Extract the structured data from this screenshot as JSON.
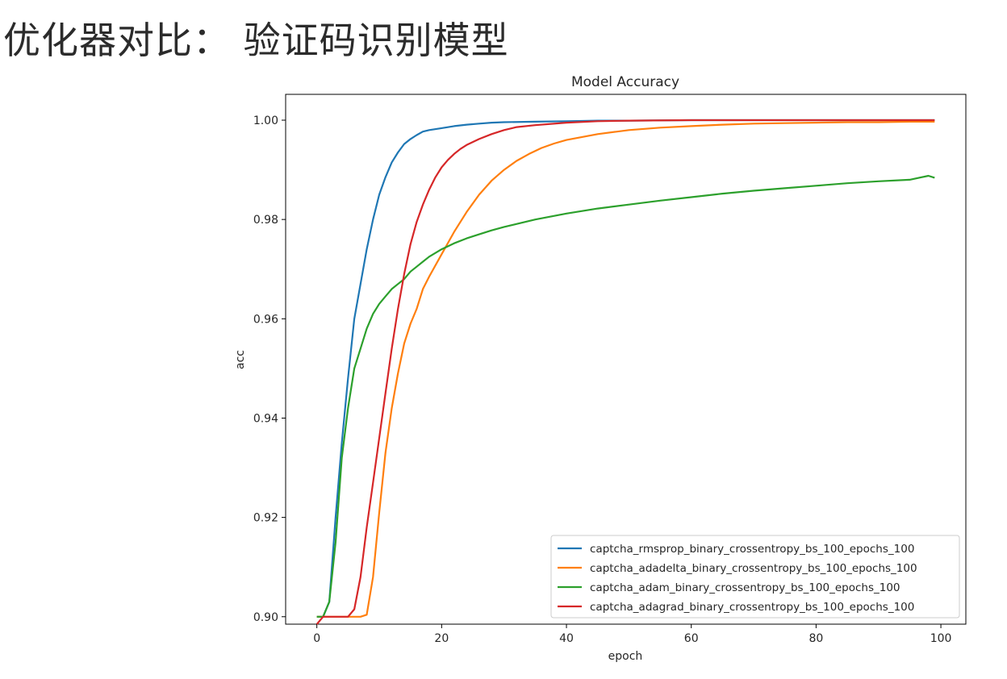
{
  "slide": {
    "title": "优化器对比： 验证码识别模型"
  },
  "chart_data": {
    "type": "line",
    "title": "Model Accuracy",
    "xlabel": "epoch",
    "ylabel": "acc",
    "xlim": [
      -5,
      104
    ],
    "ylim": [
      0.8985,
      1.0052
    ],
    "xticks": [
      0,
      20,
      40,
      60,
      80,
      100
    ],
    "yticks": [
      0.9,
      0.92,
      0.94,
      0.96,
      0.98,
      1.0
    ],
    "ytick_labels": [
      "0.90",
      "0.92",
      "0.94",
      "0.96",
      "0.98",
      "1.00"
    ],
    "legend_position": "lower-right",
    "series": [
      {
        "name": "captcha_rmsprop_binary_crossentropy_bs_100_epochs_100",
        "color": "#1f77b4",
        "x": [
          0,
          1,
          2,
          3,
          4,
          5,
          6,
          7,
          8,
          9,
          10,
          11,
          12,
          13,
          14,
          15,
          16,
          17,
          18,
          20,
          22,
          24,
          26,
          28,
          30,
          35,
          40,
          45,
          50,
          60,
          70,
          80,
          90,
          99
        ],
        "y": [
          0.9,
          0.9,
          0.903,
          0.92,
          0.935,
          0.948,
          0.96,
          0.967,
          0.974,
          0.98,
          0.985,
          0.9885,
          0.9915,
          0.9935,
          0.9952,
          0.9962,
          0.997,
          0.9977,
          0.998,
          0.9984,
          0.9988,
          0.9991,
          0.9993,
          0.9995,
          0.9996,
          0.9997,
          0.9998,
          0.9999,
          0.9999,
          1.0,
          1.0,
          1.0,
          1.0,
          1.0
        ]
      },
      {
        "name": "captcha_adadelta_binary_crossentropy_bs_100_epochs_100",
        "color": "#ff7f0e",
        "x": [
          0,
          2,
          4,
          6,
          7,
          8,
          9,
          10,
          11,
          12,
          13,
          14,
          15,
          16,
          17,
          18,
          20,
          22,
          24,
          26,
          28,
          30,
          32,
          34,
          36,
          38,
          40,
          45,
          50,
          55,
          60,
          65,
          70,
          75,
          80,
          85,
          90,
          95,
          99
        ],
        "y": [
          0.9,
          0.9,
          0.9,
          0.9,
          0.9,
          0.9004,
          0.908,
          0.921,
          0.933,
          0.942,
          0.949,
          0.955,
          0.959,
          0.962,
          0.966,
          0.9685,
          0.973,
          0.9775,
          0.9815,
          0.985,
          0.9878,
          0.99,
          0.9918,
          0.9932,
          0.9944,
          0.9953,
          0.996,
          0.9972,
          0.998,
          0.9985,
          0.9988,
          0.9991,
          0.9993,
          0.9994,
          0.9995,
          0.9996,
          0.9996,
          0.9997,
          0.9997
        ]
      },
      {
        "name": "captcha_adam_binary_crossentropy_bs_100_epochs_100",
        "color": "#2ca02c",
        "x": [
          0,
          1,
          2,
          3,
          4,
          5,
          6,
          7,
          8,
          9,
          10,
          11,
          12,
          13,
          14,
          15,
          16,
          17,
          18,
          20,
          22,
          24,
          26,
          28,
          30,
          35,
          40,
          45,
          50,
          55,
          60,
          65,
          70,
          75,
          80,
          85,
          90,
          95,
          98,
          99
        ],
        "y": [
          0.9,
          0.9,
          0.903,
          0.915,
          0.932,
          0.942,
          0.95,
          0.954,
          0.958,
          0.961,
          0.963,
          0.9645,
          0.966,
          0.967,
          0.968,
          0.9695,
          0.9705,
          0.9715,
          0.9725,
          0.974,
          0.9752,
          0.9762,
          0.977,
          0.9778,
          0.9785,
          0.98,
          0.9812,
          0.9822,
          0.983,
          0.9838,
          0.9845,
          0.9852,
          0.9858,
          0.9863,
          0.9868,
          0.9873,
          0.9877,
          0.988,
          0.9888,
          0.9884
        ]
      },
      {
        "name": "captcha_adagrad_binary_crossentropy_bs_100_epochs_100",
        "color": "#d62728",
        "x": [
          0,
          1,
          2,
          3,
          4,
          5,
          6,
          7,
          8,
          9,
          10,
          11,
          12,
          13,
          14,
          15,
          16,
          17,
          18,
          19,
          20,
          21,
          22,
          23,
          24,
          26,
          28,
          30,
          32,
          35,
          40,
          45,
          50,
          60,
          70,
          80,
          90,
          99
        ],
        "y": [
          0.8985,
          0.9,
          0.9,
          0.9,
          0.9,
          0.9,
          0.9015,
          0.908,
          0.918,
          0.927,
          0.936,
          0.945,
          0.954,
          0.962,
          0.969,
          0.975,
          0.9795,
          0.983,
          0.986,
          0.9885,
          0.9905,
          0.992,
          0.9932,
          0.9942,
          0.995,
          0.9962,
          0.9972,
          0.998,
          0.9986,
          0.999,
          0.9995,
          0.9998,
          0.9999,
          1.0,
          1.0,
          1.0,
          1.0,
          1.0
        ]
      }
    ]
  }
}
